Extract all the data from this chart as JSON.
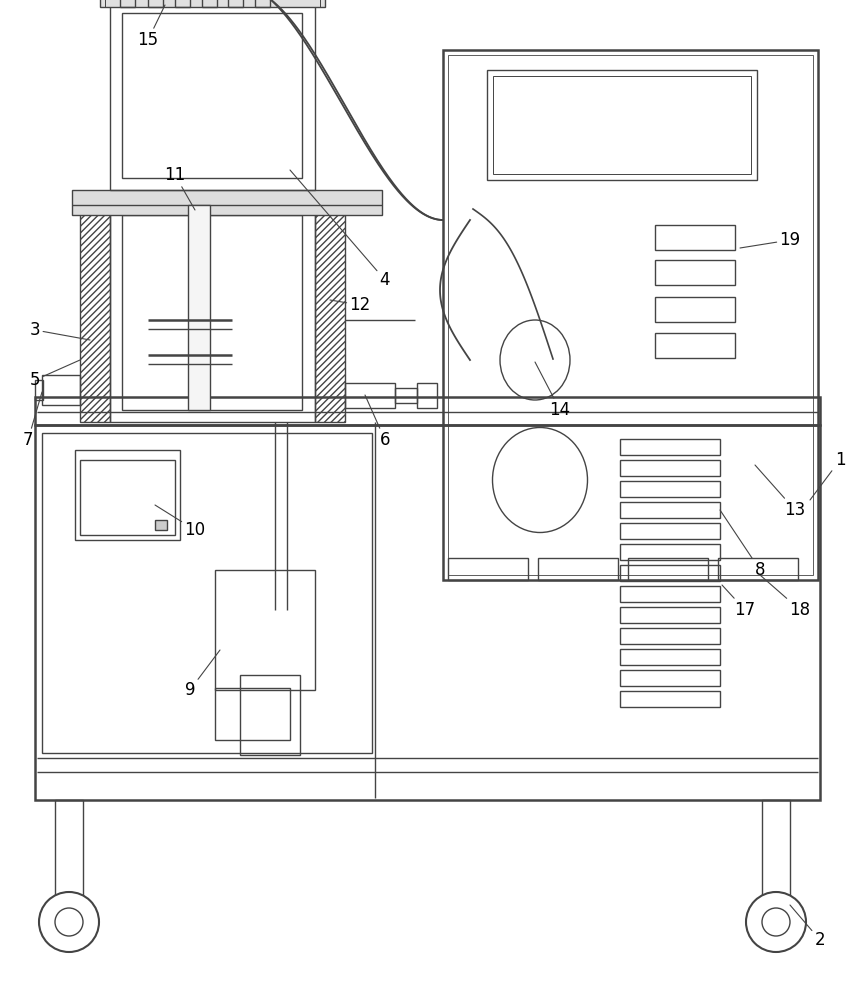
{
  "bg_color": "#ffffff",
  "lc": "#444444",
  "lw": 1.0,
  "tlw": 1.8
}
